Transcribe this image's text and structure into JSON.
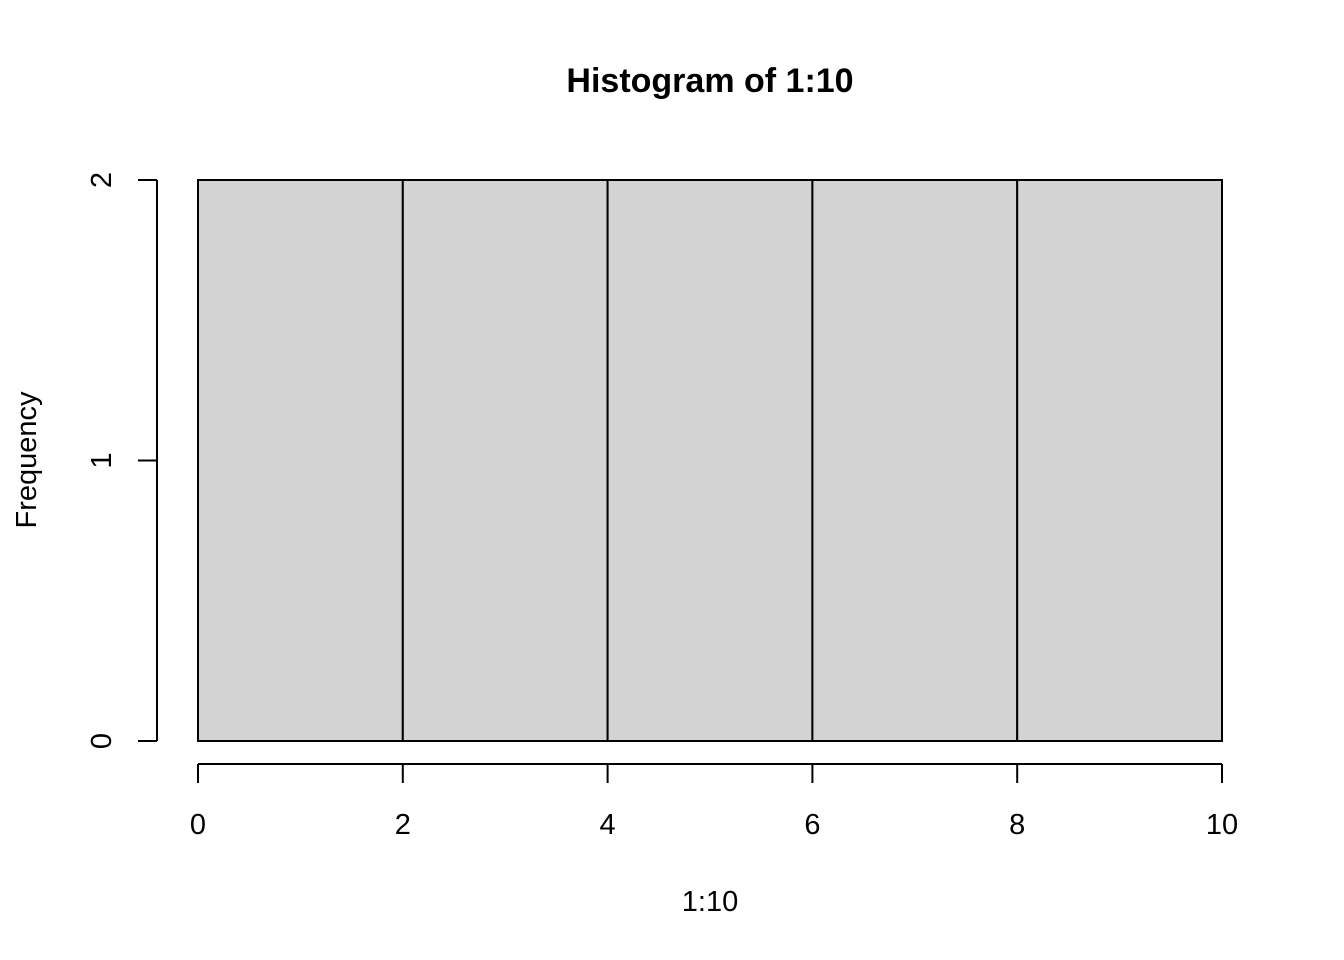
{
  "chart_data": {
    "type": "bar",
    "title": "Histogram of 1:10",
    "xlabel": "1:10",
    "ylabel": "Frequency",
    "bins": [
      [
        0,
        2
      ],
      [
        2,
        4
      ],
      [
        4,
        6
      ],
      [
        6,
        8
      ],
      [
        8,
        10
      ]
    ],
    "values": [
      2,
      2,
      2,
      2,
      2
    ],
    "xlim": [
      0,
      10
    ],
    "ylim": [
      0,
      2
    ],
    "x_ticks": [
      0,
      2,
      4,
      6,
      8,
      10
    ],
    "x_tick_labels": [
      "0",
      "2",
      "4",
      "6",
      "8",
      "10"
    ],
    "y_ticks": [
      0,
      1,
      2
    ],
    "y_tick_labels": [
      "0",
      "1",
      "2"
    ],
    "bar_color": "#d3d3d3",
    "grid": false,
    "legend": "none"
  }
}
